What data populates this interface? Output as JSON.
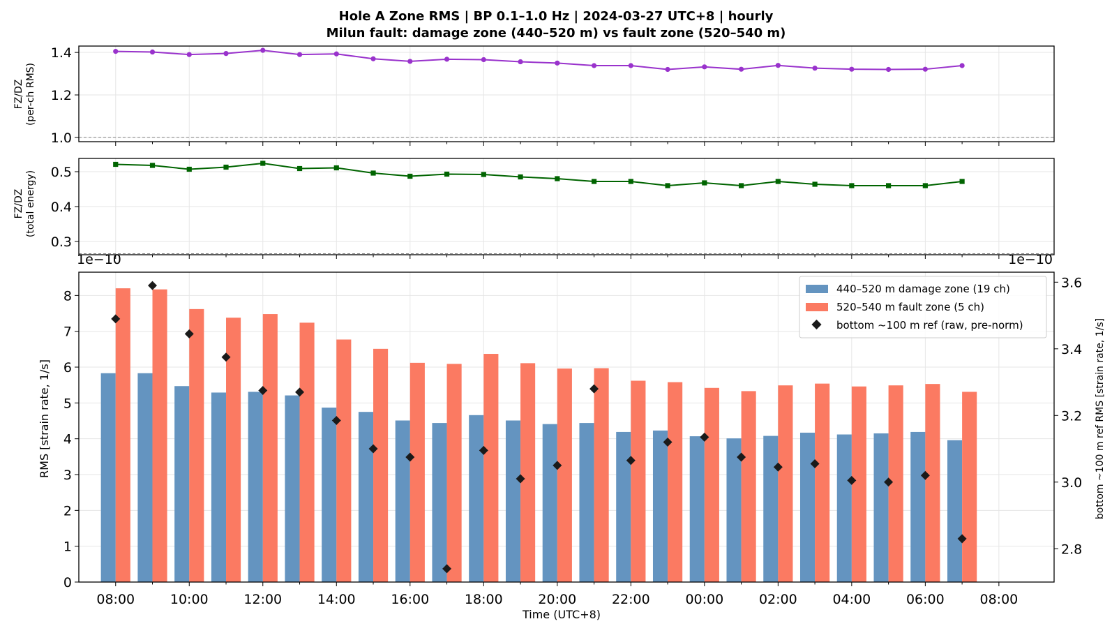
{
  "title": {
    "line1": "Hole A Zone RMS  |  BP 0.1–1.0 Hz  |  2024-03-27 UTC+8  |  hourly",
    "line2": "Milun fault: damage zone (440–520 m) vs fault zone (520–540 m)"
  },
  "colors": {
    "damage": "#6494c0",
    "fault": "#fb7a62",
    "ref": "#1a1a1a",
    "ratio_rms": "#9932cc",
    "ratio_energy": "#006400",
    "grid": "#e6e6e6"
  },
  "chart_data": [
    {
      "type": "line",
      "panel": "top",
      "ylabel_line1": "FZ/DZ",
      "ylabel_line2": "(per-ch RMS)",
      "ylim": [
        0.98,
        1.43
      ],
      "yticks": [
        "1.0",
        "1.2",
        "1.4"
      ],
      "reference_line": 1.0,
      "grid": true,
      "series": [
        {
          "values": [
            1.405,
            1.402,
            1.39,
            1.395,
            1.41,
            1.39,
            1.393,
            1.37,
            1.358,
            1.368,
            1.366,
            1.356,
            1.35,
            1.338,
            1.338,
            1.32,
            1.332,
            1.321,
            1.339,
            1.326,
            1.321,
            1.32,
            1.321,
            1.338
          ]
        }
      ]
    },
    {
      "type": "line",
      "panel": "middle",
      "ylabel_line1": "FZ/DZ",
      "ylabel_line2": "(total energy)",
      "ylim": [
        0.262,
        0.538
      ],
      "yticks": [
        "0.3",
        "0.4",
        "0.5"
      ],
      "reference_line": 0.265,
      "grid": true,
      "series": [
        {
          "values": [
            0.521,
            0.518,
            0.507,
            0.513,
            0.524,
            0.509,
            0.511,
            0.496,
            0.487,
            0.493,
            0.492,
            0.485,
            0.48,
            0.472,
            0.472,
            0.46,
            0.468,
            0.46,
            0.472,
            0.464,
            0.46,
            0.46,
            0.46,
            0.472
          ]
        }
      ]
    },
    {
      "type": "bar",
      "panel": "bottom",
      "xlabel": "Time (UTC+8)",
      "ylabel": "RMS  [strain rate, 1/s]",
      "ylabel_right": "bottom ~100 m ref RMS  [strain rate, 1/s]",
      "scale_note_left": "1e−10",
      "scale_note_right": "1e−10",
      "ylim": [
        0,
        8.65
      ],
      "yticks": [
        "0",
        "1",
        "2",
        "3",
        "4",
        "5",
        "6",
        "7",
        "8"
      ],
      "ylim_right": [
        2.7,
        3.63
      ],
      "yticks_right": [
        "2.8",
        "3.0",
        "3.2",
        "3.4",
        "3.6"
      ],
      "xlim_hours": [
        -1.0,
        25.5
      ],
      "xticks": [
        "08:00",
        "10:00",
        "12:00",
        "14:00",
        "16:00",
        "18:00",
        "20:00",
        "22:00",
        "00:00",
        "02:00",
        "04:00",
        "06:00",
        "08:00"
      ],
      "grid": true,
      "legend_position": "top-right",
      "series": [
        {
          "name": "440–520 m  damage zone (19 ch)",
          "values": [
            5.83,
            5.83,
            5.47,
            5.29,
            5.31,
            5.21,
            4.87,
            4.75,
            4.51,
            4.44,
            4.66,
            4.51,
            4.41,
            4.44,
            4.19,
            4.23,
            4.07,
            4.01,
            4.08,
            4.17,
            4.12,
            4.15,
            4.19,
            3.96
          ]
        },
        {
          "name": "520–540 m  fault zone (5 ch)",
          "values": [
            8.2,
            8.17,
            7.62,
            7.38,
            7.48,
            7.24,
            6.77,
            6.51,
            6.12,
            6.09,
            6.37,
            6.11,
            5.96,
            5.97,
            5.62,
            5.58,
            5.42,
            5.33,
            5.49,
            5.54,
            5.46,
            5.49,
            5.53,
            5.31
          ]
        },
        {
          "name": "bottom ~100 m ref (raw, pre-norm)",
          "axis": "right",
          "values": [
            3.49,
            3.59,
            3.445,
            3.375,
            3.275,
            3.27,
            3.185,
            3.1,
            3.075,
            2.74,
            3.095,
            3.01,
            3.05,
            3.28,
            3.065,
            3.12,
            3.135,
            3.075,
            3.045,
            3.055,
            3.005,
            3.0,
            3.02,
            2.83
          ]
        }
      ]
    }
  ]
}
